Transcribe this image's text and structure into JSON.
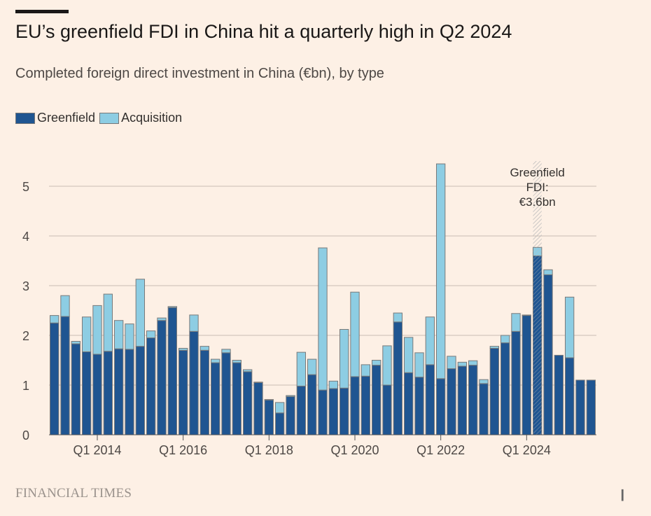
{
  "header": {
    "title": "EU’s greenfield FDI in China hit a quarterly high in Q2 2024",
    "subtitle": "Completed foreign direct investment in China (€bn), by type"
  },
  "footer": {
    "source": "FINANCIAL TIMES"
  },
  "chart_data": {
    "type": "bar",
    "stacked": true,
    "title": "EU’s greenfield FDI in China hit a quarterly high in Q2 2024",
    "subtitle": "Completed foreign direct investment in China (€bn), by type",
    "legend_position": "top-left",
    "grid": true,
    "ylim": [
      0,
      5.5
    ],
    "yticks": [
      "0",
      "1",
      "2",
      "3",
      "4",
      "5"
    ],
    "xtick_labels": [
      {
        "category": "Q1 2014",
        "label": "Q1 2014"
      },
      {
        "category": "Q1 2016",
        "label": "Q1 2016"
      },
      {
        "category": "Q1 2018",
        "label": "Q1 2018"
      },
      {
        "category": "Q1 2020",
        "label": "Q1 2020"
      },
      {
        "category": "Q1 2022",
        "label": "Q1 2022"
      },
      {
        "category": "Q1 2024",
        "label": "Q1 2024"
      }
    ],
    "categories": [
      "Q1 2013",
      "Q2 2013",
      "Q3 2013",
      "Q4 2013",
      "Q1 2014",
      "Q2 2014",
      "Q3 2014",
      "Q4 2014",
      "Q1 2015",
      "Q2 2015",
      "Q3 2015",
      "Q4 2015",
      "Q1 2016",
      "Q2 2016",
      "Q3 2016",
      "Q4 2016",
      "Q1 2017",
      "Q2 2017",
      "Q3 2017",
      "Q4 2017",
      "Q1 2018",
      "Q2 2018",
      "Q3 2018",
      "Q4 2018",
      "Q1 2019",
      "Q2 2019",
      "Q3 2019",
      "Q4 2019",
      "Q1 2020",
      "Q2 2020",
      "Q3 2020",
      "Q4 2020",
      "Q1 2021",
      "Q2 2021",
      "Q3 2021",
      "Q4 2021",
      "Q1 2022",
      "Q2 2022",
      "Q3 2022",
      "Q4 2022",
      "Q1 2023",
      "Q2 2023",
      "Q3 2023",
      "Q4 2023",
      "Q1 2024",
      "Q2 2024",
      "Q3 2024",
      "Q4 2024",
      "Q1 2025",
      "Q2 2025",
      "Q3 2025"
    ],
    "series": [
      {
        "name": "Greenfield",
        "color": "#1f5591",
        "values": [
          2.25,
          2.38,
          1.83,
          1.67,
          1.62,
          1.68,
          1.73,
          1.72,
          1.78,
          1.95,
          2.3,
          2.56,
          1.7,
          2.08,
          1.7,
          1.45,
          1.65,
          1.45,
          1.27,
          1.05,
          0.7,
          0.44,
          0.77,
          0.98,
          1.21,
          0.9,
          0.93,
          0.94,
          1.17,
          1.18,
          1.4,
          1.0,
          2.27,
          1.25,
          1.16,
          1.41,
          1.13,
          1.33,
          1.38,
          1.4,
          1.03,
          1.74,
          1.85,
          2.08,
          2.4,
          3.6,
          3.22,
          1.6,
          1.55,
          1.1,
          1.1
        ]
      },
      {
        "name": "Acquisition",
        "color": "#8dcde3",
        "values": [
          0.15,
          0.42,
          0.05,
          0.7,
          0.98,
          1.15,
          0.57,
          0.51,
          1.35,
          0.14,
          0.05,
          0.02,
          0.04,
          0.33,
          0.08,
          0.07,
          0.07,
          0.05,
          0.04,
          0.01,
          0.01,
          0.21,
          0.02,
          0.68,
          0.31,
          2.86,
          0.15,
          1.18,
          1.7,
          0.23,
          0.1,
          0.79,
          0.18,
          0.71,
          0.49,
          0.96,
          4.32,
          0.25,
          0.08,
          0.09,
          0.08,
          0.04,
          0.15,
          0.36,
          0.01,
          0.17,
          0.1,
          0.0,
          1.22,
          0.0,
          0.0
        ]
      }
    ],
    "annotation": {
      "category": "Q2 2024",
      "lines": [
        "Greenfield",
        "FDI:",
        "€3.6bn"
      ]
    }
  }
}
